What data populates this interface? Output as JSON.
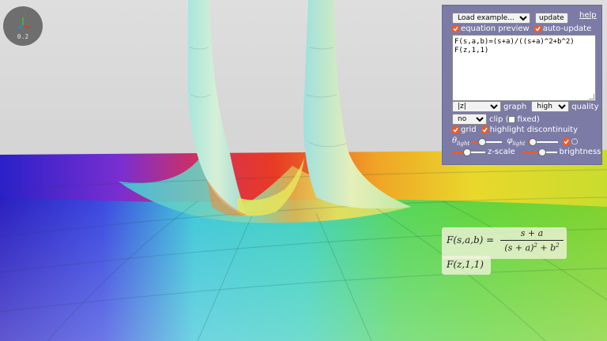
{
  "gizmo": {
    "zoom": "0.2",
    "axis_colors": {
      "x": "#e2322b",
      "y": "#2a8ae8",
      "z": "#3fc13b"
    }
  },
  "panel": {
    "example_select": "Load example...",
    "update_label": "update",
    "help_label": "help",
    "equation_preview_label": "equation preview",
    "equation_preview_checked": true,
    "auto_update_label": "auto-update",
    "auto_update_checked": true,
    "code_lines": [
      "F(s,a,b)=(s+a)/((s+a)^2+b^2)",
      "F(z,1,1)"
    ],
    "graph_select": "|z|",
    "graph_label": "graph",
    "quality_select": "high",
    "quality_label": "quality",
    "clip_select": "no",
    "clip_label": "clip (",
    "fixed_label": "fixed)",
    "fixed_checked": false,
    "grid_label": "grid",
    "grid_checked": true,
    "highlight_label": "highlight discontinuity",
    "highlight_checked": true,
    "theta_symbol": "θ",
    "theta_sub": "light",
    "theta_value": 0.3,
    "phi_symbol": "φ",
    "phi_sub": "light",
    "phi_value": 0.05,
    "circle_label": "○",
    "circle_checked": true,
    "zscale_label": "z-scale",
    "zscale_value": 0.45,
    "brightness_label": "brightness",
    "brightness_value": 0.6,
    "accent": "#e95d2b",
    "panel_bg": "#7b7ba6"
  },
  "formula": {
    "lhs": "F(s,a,b) =",
    "numerator": "s + a",
    "denominator_base": "(s + a)",
    "denominator_exp": "2",
    "denominator_plus": "+ b",
    "denominator_exp2": "2",
    "call": "F(z,1,1)"
  }
}
